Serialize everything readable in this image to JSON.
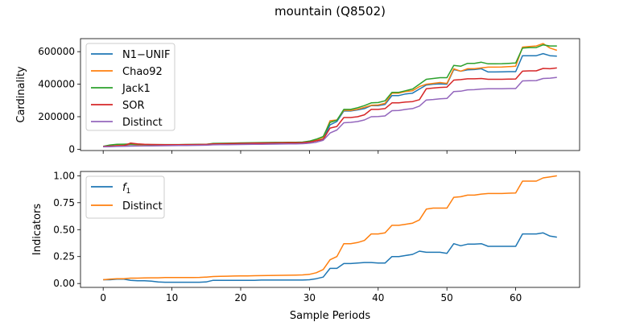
{
  "figure_title": "mountain (Q8502)",
  "chart_data": [
    {
      "type": "line",
      "xlabel": "",
      "ylabel": "Cardinality",
      "xlim": [
        -3.3,
        69.3
      ],
      "ylim": [
        -8000,
        680000
      ],
      "xticks": [
        0,
        10,
        20,
        30,
        40,
        50,
        60
      ],
      "xtick_labels_visible": false,
      "yticks": [
        0,
        200000,
        400000,
        600000
      ],
      "ytick_labels": [
        "0",
        "200000",
        "400000",
        "600000"
      ],
      "grid": false,
      "legend_position": "upper-left",
      "x": [
        0,
        1,
        2,
        3,
        4,
        5,
        6,
        7,
        8,
        9,
        10,
        11,
        12,
        13,
        14,
        15,
        16,
        17,
        18,
        19,
        20,
        21,
        22,
        23,
        24,
        25,
        26,
        27,
        28,
        29,
        30,
        31,
        32,
        33,
        34,
        35,
        36,
        37,
        38,
        39,
        40,
        41,
        42,
        43,
        44,
        45,
        46,
        47,
        48,
        49,
        50,
        51,
        52,
        53,
        54,
        55,
        56,
        57,
        58,
        59,
        60,
        61,
        62,
        63,
        64,
        65,
        66
      ],
      "series": [
        {
          "name": "N1−UNIF",
          "color": "#1f77b4",
          "values": [
            16000,
            18000,
            19000,
            20000,
            21000,
            22000,
            22500,
            23000,
            23500,
            24000,
            24500,
            25000,
            25500,
            26000,
            26500,
            27000,
            30000,
            31000,
            32000,
            33000,
            34000,
            35000,
            36000,
            37000,
            37500,
            38000,
            38500,
            39000,
            39500,
            40000,
            44000,
            52000,
            62000,
            150000,
            170000,
            235000,
            235000,
            242000,
            250000,
            268000,
            268000,
            275000,
            330000,
            330000,
            340000,
            345000,
            370000,
            395000,
            400000,
            402000,
            400000,
            490000,
            480000,
            488000,
            490000,
            495000,
            475000,
            475000,
            476000,
            477000,
            477000,
            575000,
            575000,
            575000,
            588000,
            575000,
            572000
          ]
        },
        {
          "name": "Chao92",
          "color": "#ff7f0e",
          "values": [
            17000,
            20000,
            23000,
            25000,
            30000,
            28000,
            27000,
            26500,
            26500,
            26500,
            26500,
            26500,
            27000,
            27000,
            27500,
            28000,
            34000,
            34500,
            35000,
            36000,
            37000,
            37500,
            38500,
            39000,
            39500,
            40000,
            40000,
            40500,
            41000,
            41500,
            48000,
            58000,
            72000,
            175000,
            180000,
            240000,
            238000,
            246000,
            258000,
            270000,
            272000,
            282000,
            345000,
            345000,
            355000,
            360000,
            385000,
            400000,
            405000,
            410000,
            405000,
            495000,
            480000,
            495000,
            495000,
            500000,
            505000,
            505000,
            506000,
            508000,
            510000,
            628000,
            632000,
            635000,
            650000,
            622000,
            608000
          ]
        },
        {
          "name": "Jack1",
          "color": "#2ca02c",
          "values": [
            18000,
            26000,
            30000,
            31000,
            32000,
            31000,
            29000,
            28500,
            28500,
            28500,
            28500,
            28500,
            29000,
            29500,
            30000,
            30500,
            36000,
            36500,
            37000,
            38000,
            39000,
            39500,
            40500,
            41000,
            41500,
            42000,
            42000,
            42500,
            43000,
            44000,
            50000,
            62000,
            78000,
            165000,
            178000,
            245000,
            245000,
            255000,
            268000,
            285000,
            287000,
            298000,
            350000,
            350000,
            360000,
            370000,
            400000,
            430000,
            435000,
            440000,
            440000,
            515000,
            510000,
            528000,
            528000,
            535000,
            525000,
            525000,
            526000,
            528000,
            530000,
            622000,
            625000,
            625000,
            642000,
            635000,
            635000
          ]
        },
        {
          "name": "SOR",
          "color": "#d62728",
          "values": [
            17000,
            19000,
            21000,
            22000,
            38000,
            33000,
            30000,
            29000,
            28500,
            28000,
            28000,
            28000,
            28500,
            28500,
            29000,
            29500,
            33000,
            33500,
            34000,
            35000,
            36000,
            36500,
            37500,
            38000,
            38500,
            39000,
            39500,
            40000,
            40500,
            41000,
            44000,
            52000,
            60000,
            130000,
            140000,
            195000,
            195000,
            200000,
            212000,
            245000,
            245000,
            250000,
            285000,
            285000,
            290000,
            293000,
            305000,
            372000,
            376000,
            380000,
            382000,
            425000,
            428000,
            433000,
            433000,
            435000,
            430000,
            430000,
            430000,
            431000,
            432000,
            480000,
            482000,
            482000,
            497000,
            495000,
            500000
          ]
        },
        {
          "name": "Distinct",
          "color": "#9467bd",
          "values": [
            15000,
            16000,
            17000,
            18000,
            19000,
            19500,
            20000,
            20500,
            21000,
            21500,
            22000,
            22500,
            23000,
            23500,
            24000,
            24500,
            27000,
            27500,
            28000,
            28500,
            29000,
            29500,
            30000,
            30500,
            31000,
            31500,
            32000,
            32500,
            33000,
            34000,
            37000,
            43000,
            55000,
            100000,
            118000,
            163000,
            165000,
            170000,
            180000,
            200000,
            201000,
            205000,
            237000,
            238000,
            245000,
            250000,
            265000,
            303000,
            306000,
            310000,
            312000,
            355000,
            357000,
            365000,
            366000,
            370000,
            372000,
            372000,
            372000,
            373000,
            373000,
            420000,
            421000,
            422000,
            435000,
            437000,
            442000
          ]
        }
      ]
    },
    {
      "type": "line",
      "xlabel": "Sample Periods",
      "ylabel": "Indicators",
      "xlim": [
        -3.3,
        69.3
      ],
      "ylim": [
        -0.036,
        1.04
      ],
      "xticks": [
        0,
        10,
        20,
        30,
        40,
        50,
        60
      ],
      "xtick_labels": [
        "0",
        "10",
        "20",
        "30",
        "40",
        "50",
        "60"
      ],
      "yticks": [
        0,
        0.25,
        0.5,
        0.75,
        1.0
      ],
      "ytick_labels": [
        "0.00",
        "0.25",
        "0.50",
        "0.75",
        "1.00"
      ],
      "grid": false,
      "legend_position": "upper-left",
      "x": [
        0,
        1,
        2,
        3,
        4,
        5,
        6,
        7,
        8,
        9,
        10,
        11,
        12,
        13,
        14,
        15,
        16,
        17,
        18,
        19,
        20,
        21,
        22,
        23,
        24,
        25,
        26,
        27,
        28,
        29,
        30,
        31,
        32,
        33,
        34,
        35,
        36,
        37,
        38,
        39,
        40,
        41,
        42,
        43,
        44,
        45,
        46,
        47,
        48,
        49,
        50,
        51,
        52,
        53,
        54,
        55,
        56,
        57,
        58,
        59,
        60,
        61,
        62,
        63,
        64,
        65,
        66
      ],
      "series": [
        {
          "name": "f",
          "name_subscript": "1",
          "color": "#1f77b4",
          "values": [
            0.035,
            0.035,
            0.04,
            0.04,
            0.03,
            0.025,
            0.025,
            0.022,
            0.015,
            0.012,
            0.012,
            0.012,
            0.012,
            0.012,
            0.012,
            0.015,
            0.03,
            0.03,
            0.03,
            0.03,
            0.03,
            0.03,
            0.03,
            0.032,
            0.032,
            0.032,
            0.032,
            0.032,
            0.032,
            0.032,
            0.035,
            0.045,
            0.06,
            0.14,
            0.14,
            0.185,
            0.185,
            0.19,
            0.195,
            0.195,
            0.19,
            0.19,
            0.25,
            0.25,
            0.26,
            0.27,
            0.3,
            0.29,
            0.29,
            0.29,
            0.28,
            0.37,
            0.35,
            0.365,
            0.365,
            0.37,
            0.345,
            0.345,
            0.345,
            0.345,
            0.345,
            0.46,
            0.46,
            0.46,
            0.47,
            0.44,
            0.43
          ]
        },
        {
          "name": "Distinct",
          "color": "#ff7f0e",
          "values": [
            0.035,
            0.04,
            0.045,
            0.045,
            0.05,
            0.05,
            0.052,
            0.053,
            0.053,
            0.055,
            0.055,
            0.055,
            0.055,
            0.056,
            0.057,
            0.06,
            0.065,
            0.066,
            0.068,
            0.069,
            0.07,
            0.071,
            0.072,
            0.073,
            0.074,
            0.075,
            0.076,
            0.077,
            0.078,
            0.08,
            0.085,
            0.1,
            0.13,
            0.22,
            0.25,
            0.37,
            0.37,
            0.38,
            0.4,
            0.46,
            0.46,
            0.47,
            0.54,
            0.54,
            0.55,
            0.56,
            0.59,
            0.69,
            0.7,
            0.7,
            0.7,
            0.8,
            0.805,
            0.82,
            0.82,
            0.83,
            0.835,
            0.835,
            0.835,
            0.838,
            0.84,
            0.95,
            0.95,
            0.95,
            0.98,
            0.99,
            1.0
          ]
        }
      ]
    }
  ]
}
